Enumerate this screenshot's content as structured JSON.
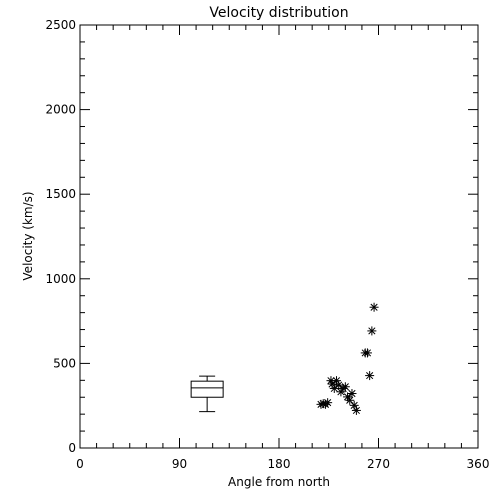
{
  "chart_data": {
    "type": "scatter",
    "title": "Velocity distribution",
    "xlabel": "Angle from north",
    "ylabel": "Velocity (km/s)",
    "xlim": [
      0,
      360
    ],
    "ylim": [
      0,
      2500
    ],
    "xticks": [
      0,
      90,
      180,
      270,
      360
    ],
    "yticks": [
      0,
      500,
      1000,
      1500,
      2000,
      2500
    ],
    "grid": false,
    "points": [
      {
        "x": 218,
        "y": 258
      },
      {
        "x": 220,
        "y": 262
      },
      {
        "x": 222,
        "y": 258
      },
      {
        "x": 224,
        "y": 268
      },
      {
        "x": 227,
        "y": 398
      },
      {
        "x": 228,
        "y": 378
      },
      {
        "x": 230,
        "y": 352
      },
      {
        "x": 232,
        "y": 398
      },
      {
        "x": 234,
        "y": 372
      },
      {
        "x": 236,
        "y": 332
      },
      {
        "x": 238,
        "y": 352
      },
      {
        "x": 240,
        "y": 362
      },
      {
        "x": 242,
        "y": 302
      },
      {
        "x": 244,
        "y": 282
      },
      {
        "x": 246,
        "y": 322
      },
      {
        "x": 248,
        "y": 252
      },
      {
        "x": 250,
        "y": 222
      },
      {
        "x": 258,
        "y": 562
      },
      {
        "x": 260,
        "y": 562
      },
      {
        "x": 262,
        "y": 428
      },
      {
        "x": 264,
        "y": 692
      },
      {
        "x": 266,
        "y": 832
      }
    ],
    "boxplot": {
      "x": 115,
      "min": 215,
      "q1": 300,
      "median": 355,
      "q3": 395,
      "max": 425
    }
  }
}
